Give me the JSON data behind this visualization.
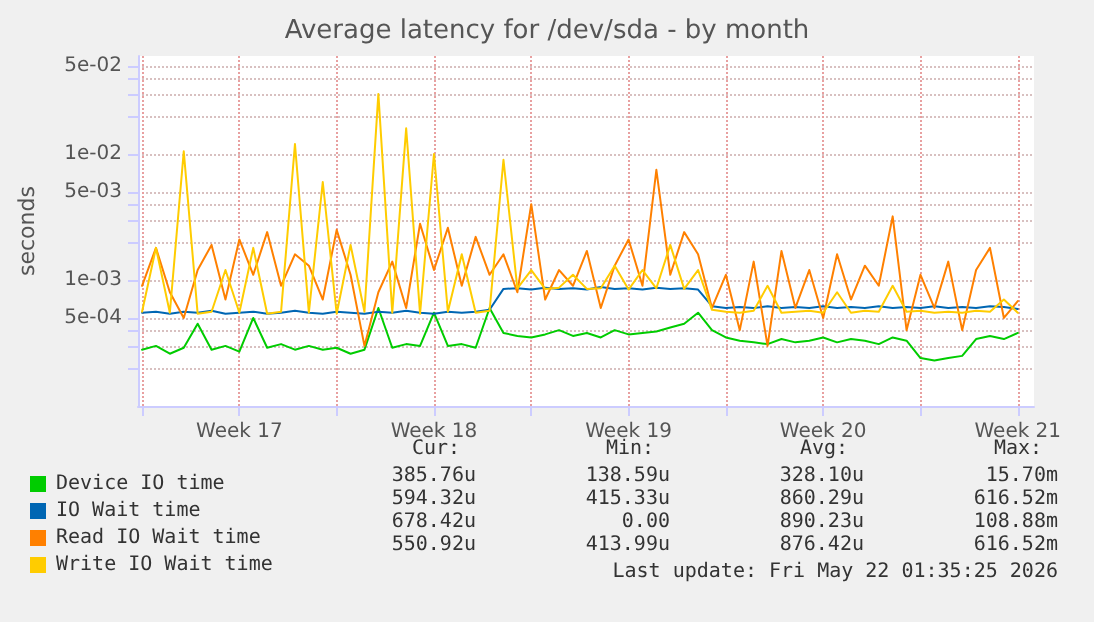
{
  "chart_data": {
    "type": "line",
    "title": "Average latency for /dev/sda - by month",
    "ylabel": "seconds",
    "log": "y",
    "grid": true,
    "legend": "bottom left",
    "marker": "none",
    "line_style": "solid",
    "xlim": [
      "2026-04-19T20:30",
      "2026-05-22T02:00"
    ],
    "xticks": [
      {
        "value": "2026-04-20",
        "label": null
      },
      {
        "value": "2026-04-23T12:00",
        "label": "Week 17"
      },
      {
        "value": "2026-04-27",
        "label": null
      },
      {
        "value": "2026-04-30T12:00",
        "label": "Week 18"
      },
      {
        "value": "2026-05-04",
        "label": null
      },
      {
        "value": "2026-05-07T12:00",
        "label": "Week 19"
      },
      {
        "value": "2026-05-11",
        "label": null
      },
      {
        "value": "2026-05-14T12:00",
        "label": "Week 20"
      },
      {
        "value": "2026-05-18",
        "label": null
      },
      {
        "value": "2026-05-21T12:00",
        "label": "Week 21"
      }
    ],
    "ylim": [
      0.0001,
      0.06
    ],
    "yticks": [
      {
        "value": 0.0002,
        "label": null
      },
      {
        "value": 0.0003,
        "label": null
      },
      {
        "value": 0.0004,
        "label": null
      },
      {
        "value": 0.0005,
        "label": "5e-04"
      },
      {
        "value": 0.001,
        "label": "1e-03"
      },
      {
        "value": 0.002,
        "label": null
      },
      {
        "value": 0.003,
        "label": null
      },
      {
        "value": 0.004,
        "label": null
      },
      {
        "value": 0.005,
        "label": "5e-03"
      },
      {
        "value": 0.01,
        "label": "1e-02"
      },
      {
        "value": 0.02,
        "label": null
      },
      {
        "value": 0.03,
        "label": null
      },
      {
        "value": 0.04,
        "label": null
      },
      {
        "value": 0.05,
        "label": "5e-02"
      }
    ],
    "x": [
      "2026-04-20T00:00",
      "2026-04-20T12:00",
      "2026-04-21T00:00",
      "2026-04-21T12:00",
      "2026-04-22T00:00",
      "2026-04-22T12:00",
      "2026-04-23T00:00",
      "2026-04-23T12:00",
      "2026-04-24T00:00",
      "2026-04-24T12:00",
      "2026-04-25T00:00",
      "2026-04-25T12:00",
      "2026-04-26T00:00",
      "2026-04-26T12:00",
      "2026-04-27T00:00",
      "2026-04-27T12:00",
      "2026-04-28T00:00",
      "2026-04-28T12:00",
      "2026-04-29T00:00",
      "2026-04-29T12:00",
      "2026-04-30T00:00",
      "2026-04-30T12:00",
      "2026-05-01T00:00",
      "2026-05-01T12:00",
      "2026-05-02T00:00",
      "2026-05-02T12:00",
      "2026-05-03T00:00",
      "2026-05-03T12:00",
      "2026-05-04T00:00",
      "2026-05-04T12:00",
      "2026-05-05T00:00",
      "2026-05-05T12:00",
      "2026-05-06T00:00",
      "2026-05-06T12:00",
      "2026-05-07T00:00",
      "2026-05-07T12:00",
      "2026-05-08T00:00",
      "2026-05-08T12:00",
      "2026-05-09T00:00",
      "2026-05-09T12:00",
      "2026-05-10T00:00",
      "2026-05-10T12:00",
      "2026-05-11T00:00",
      "2026-05-11T12:00",
      "2026-05-12T00:00",
      "2026-05-12T12:00",
      "2026-05-13T00:00",
      "2026-05-13T12:00",
      "2026-05-14T00:00",
      "2026-05-14T12:00",
      "2026-05-15T00:00",
      "2026-05-15T12:00",
      "2026-05-16T00:00",
      "2026-05-16T12:00",
      "2026-05-17T00:00",
      "2026-05-17T12:00",
      "2026-05-18T00:00",
      "2026-05-18T12:00",
      "2026-05-19T00:00",
      "2026-05-19T12:00",
      "2026-05-20T00:00",
      "2026-05-20T12:00",
      "2026-05-21T00:00",
      "2026-05-21T12:00"
    ],
    "series": [
      {
        "name": "Device IO time",
        "color": "#00cc00",
        "values": [
          0.00028,
          0.0003,
          0.00026,
          0.00029,
          0.00045,
          0.00028,
          0.0003,
          0.00027,
          0.0005,
          0.00029,
          0.00031,
          0.00028,
          0.0003,
          0.00028,
          0.00029,
          0.00026,
          0.00028,
          0.0006,
          0.00029,
          0.00031,
          0.0003,
          0.00055,
          0.0003,
          0.00031,
          0.00029,
          0.0006,
          0.00038,
          0.00036,
          0.00035,
          0.00037,
          0.0004,
          0.00036,
          0.00038,
          0.00035,
          0.0004,
          0.00037,
          0.00038,
          0.00039,
          0.00042,
          0.00045,
          0.00055,
          0.0004,
          0.00035,
          0.00033,
          0.00032,
          0.00031,
          0.00034,
          0.00032,
          0.00033,
          0.00035,
          0.00032,
          0.00034,
          0.00033,
          0.00031,
          0.00035,
          0.00033,
          0.00024,
          0.00023,
          0.00024,
          0.00025,
          0.00034,
          0.00036,
          0.00034,
          0.00038
        ]
      },
      {
        "name": "IO Wait time",
        "color": "#0066b3",
        "values": [
          0.00055,
          0.00056,
          0.00054,
          0.00056,
          0.00055,
          0.00057,
          0.00054,
          0.00055,
          0.00056,
          0.00054,
          0.00055,
          0.00057,
          0.00055,
          0.00054,
          0.00056,
          0.00055,
          0.00054,
          0.00056,
          0.00055,
          0.00057,
          0.00055,
          0.00054,
          0.00056,
          0.00055,
          0.00056,
          0.00058,
          0.00085,
          0.00086,
          0.00084,
          0.00087,
          0.00085,
          0.00086,
          0.00084,
          0.00088,
          0.00085,
          0.00086,
          0.00084,
          0.00087,
          0.00085,
          0.00086,
          0.00084,
          0.00062,
          0.0006,
          0.00061,
          0.0006,
          0.00062,
          0.0006,
          0.00061,
          0.0006,
          0.00062,
          0.0006,
          0.00061,
          0.0006,
          0.00062,
          0.0006,
          0.00061,
          0.0006,
          0.00062,
          0.0006,
          0.00061,
          0.0006,
          0.00062,
          0.00061,
          0.00059
        ]
      },
      {
        "name": "Read IO Wait time",
        "color": "#ff8000",
        "values": [
          0.0009,
          0.0018,
          0.0008,
          0.0005,
          0.0012,
          0.0019,
          0.0007,
          0.0021,
          0.0011,
          0.0024,
          0.0009,
          0.0016,
          0.0013,
          0.0007,
          0.0025,
          0.0011,
          0.0003,
          0.0008,
          0.0014,
          0.0006,
          0.0028,
          0.0012,
          0.0026,
          0.0009,
          0.0022,
          0.0011,
          0.0016,
          0.0008,
          0.004,
          0.0007,
          0.0012,
          0.0009,
          0.0017,
          0.0006,
          0.0013,
          0.0021,
          0.0009,
          0.0075,
          0.0011,
          0.0024,
          0.0016,
          0.0006,
          0.0011,
          0.0004,
          0.0014,
          0.0003,
          0.0017,
          0.0006,
          0.0012,
          0.0005,
          0.0016,
          0.0007,
          0.0013,
          0.0009,
          0.0032,
          0.0004,
          0.0011,
          0.0006,
          0.0014,
          0.0004,
          0.0012,
          0.0018,
          0.0005,
          0.00068
        ]
      },
      {
        "name": "Write IO Wait time",
        "color": "#ffcc00",
        "values": [
          0.00056,
          0.0018,
          0.00055,
          0.0105,
          0.00054,
          0.00056,
          0.0012,
          0.00055,
          0.0018,
          0.00054,
          0.00056,
          0.012,
          0.00055,
          0.006,
          0.00054,
          0.0019,
          0.00056,
          0.03,
          0.00055,
          0.016,
          0.00054,
          0.01,
          0.00056,
          0.0016,
          0.00055,
          0.00057,
          0.009,
          0.00086,
          0.0012,
          0.00085,
          0.00087,
          0.0011,
          0.00085,
          0.00086,
          0.0013,
          0.00084,
          0.0012,
          0.00086,
          0.0019,
          0.00085,
          0.0012,
          0.00058,
          0.00056,
          0.00055,
          0.00057,
          0.0009,
          0.00055,
          0.00056,
          0.00057,
          0.00055,
          0.0008,
          0.00055,
          0.00057,
          0.00056,
          0.0009,
          0.00056,
          0.00057,
          0.00055,
          0.00056,
          0.00055,
          0.00057,
          0.00056,
          0.0007,
          0.00055
        ]
      }
    ],
    "annotations": [
      "Cur:",
      "Min:",
      "Avg:",
      "Max:",
      "385.76u",
      "138.59u",
      "328.10u",
      "15.70m",
      "594.32u",
      "415.33u",
      "860.29u",
      "616.52m",
      "678.42u",
      "0.00",
      "890.23u",
      "108.88m",
      "550.92u",
      "413.99u",
      "876.42u",
      "616.52m",
      "Last update: Fri May 22 01:35:25 2026"
    ]
  }
}
